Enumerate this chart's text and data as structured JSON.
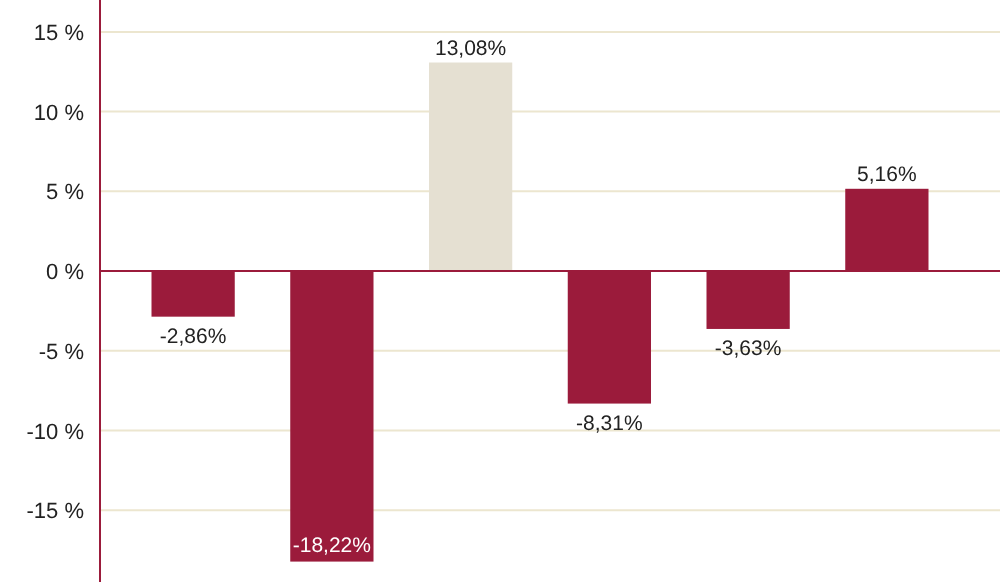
{
  "chart_data": {
    "type": "bar",
    "categories": [
      null,
      null,
      null,
      null,
      null,
      null
    ],
    "values": [
      -2.86,
      -18.22,
      13.08,
      -8.31,
      -3.63,
      5.16
    ],
    "colors": [
      "#9b1b3b",
      "#9b1b3b",
      "#e5e0d2",
      "#9b1b3b",
      "#9b1b3b",
      "#9b1b3b"
    ],
    "value_labels": [
      "-2,86%",
      "-18,22%",
      "13,08%",
      "-8,31%",
      "-3,63%",
      "5,16%"
    ],
    "ylim": [
      -19.5,
      17
    ],
    "yticks": [
      {
        "value": -15,
        "label": "-15 %"
      },
      {
        "value": -10,
        "label": "-10 %"
      },
      {
        "value": -5,
        "label": "-5 %"
      },
      {
        "value": 0,
        "label": "0 %"
      },
      {
        "value": 5,
        "label": "5 %"
      },
      {
        "value": 10,
        "label": "10 %"
      },
      {
        "value": 15,
        "label": "15 %"
      }
    ],
    "ref_lines": [
      {
        "axis": "y",
        "value": 0,
        "color": "#9b1b3b"
      }
    ],
    "grid": "y",
    "tick_labels": "y"
  }
}
